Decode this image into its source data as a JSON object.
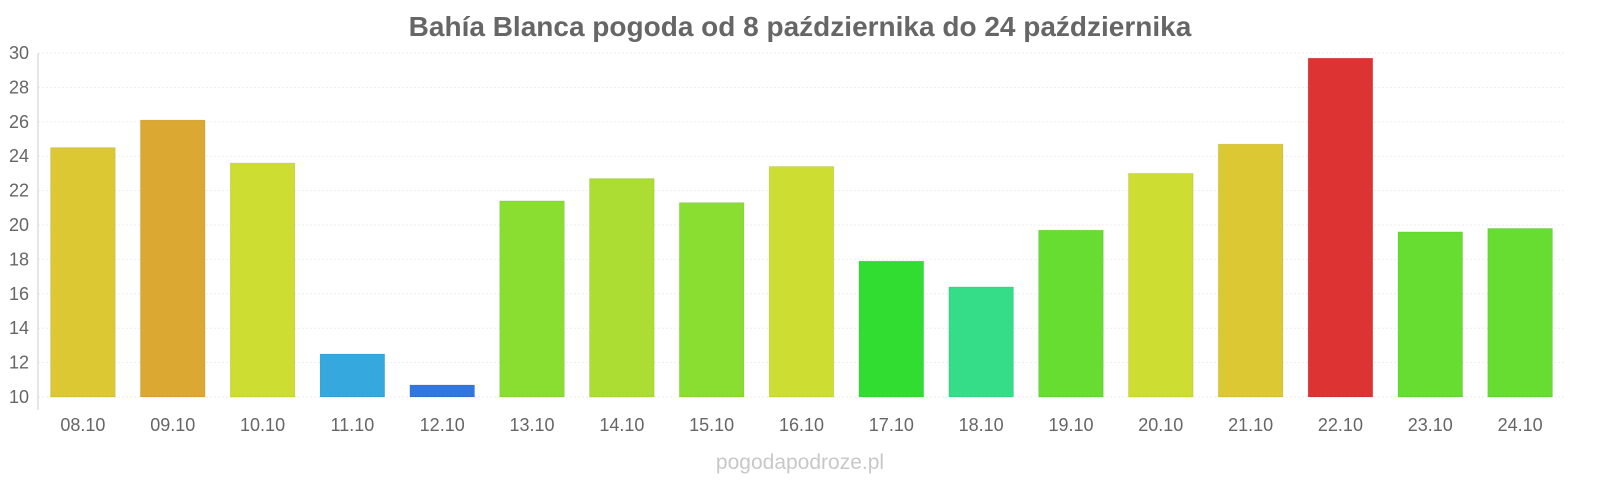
{
  "chart_data": {
    "type": "bar",
    "title": "Bahía Blanca pogoda od 8 października do 24 października",
    "xlabel": "",
    "ylabel": "",
    "ylim": [
      10,
      30
    ],
    "yticks": [
      10,
      12,
      14,
      16,
      18,
      20,
      22,
      24,
      26,
      28,
      30
    ],
    "grid": true,
    "legend": "none",
    "categories": [
      "08.10",
      "09.10",
      "10.10",
      "11.10",
      "12.10",
      "13.10",
      "14.10",
      "15.10",
      "16.10",
      "17.10",
      "18.10",
      "19.10",
      "20.10",
      "21.10",
      "22.10",
      "23.10",
      "24.10"
    ],
    "values": [
      24.5,
      26.1,
      23.6,
      12.5,
      10.7,
      21.4,
      22.7,
      21.3,
      23.4,
      17.9,
      16.4,
      19.7,
      23.0,
      24.7,
      29.7,
      19.6,
      19.8
    ],
    "colors": [
      "#dbc832",
      "#dba832",
      "#cedd32",
      "#35a8dd",
      "#3277dd",
      "#8ade32",
      "#acdd32",
      "#8ade32",
      "#cedd32",
      "#32dd32",
      "#35dd88",
      "#67dd32",
      "#cedd32",
      "#dbc832",
      "#dd3333",
      "#67dd32",
      "#67dd32"
    ]
  },
  "watermark": "pogodapodroze.pl"
}
